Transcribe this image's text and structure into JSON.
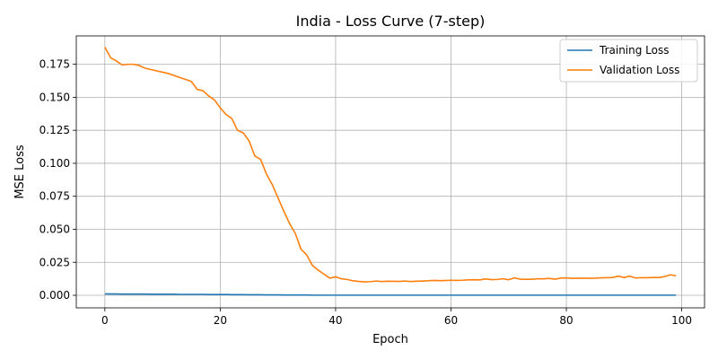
{
  "chart_data": {
    "type": "line",
    "title": "India - Loss Curve (7-step)",
    "xlabel": "Epoch",
    "ylabel": "MSE Loss",
    "xlim": [
      -4.95,
      103.95
    ],
    "ylim": [
      -0.0095,
      0.1965
    ],
    "xticks": [
      0,
      20,
      40,
      60,
      80,
      100
    ],
    "yticks": [
      0.0,
      0.025,
      0.05,
      0.075,
      0.1,
      0.125,
      0.15,
      0.175
    ],
    "xtick_labels": [
      "0",
      "20",
      "40",
      "60",
      "80",
      "100"
    ],
    "ytick_labels": [
      "0.000",
      "0.025",
      "0.050",
      "0.075",
      "0.100",
      "0.125",
      "0.150",
      "0.175"
    ],
    "grid": true,
    "legend_position": "top-right",
    "x": [
      0,
      1,
      2,
      3,
      4,
      5,
      6,
      7,
      8,
      9,
      10,
      11,
      12,
      13,
      14,
      15,
      16,
      17,
      18,
      19,
      20,
      21,
      22,
      23,
      24,
      25,
      26,
      27,
      28,
      29,
      30,
      31,
      32,
      33,
      34,
      35,
      36,
      37,
      38,
      39,
      40,
      41,
      42,
      43,
      44,
      45,
      46,
      47,
      48,
      49,
      50,
      51,
      52,
      53,
      54,
      55,
      56,
      57,
      58,
      59,
      60,
      61,
      62,
      63,
      64,
      65,
      66,
      67,
      68,
      69,
      70,
      71,
      72,
      73,
      74,
      75,
      76,
      77,
      78,
      79,
      80,
      81,
      82,
      83,
      84,
      85,
      86,
      87,
      88,
      89,
      90,
      91,
      92,
      93,
      94,
      95,
      96,
      97,
      98,
      99
    ],
    "series": [
      {
        "name": "Training Loss",
        "color": "#1f77b4",
        "values": [
          0.0011,
          0.001,
          0.001,
          0.0009,
          0.0009,
          0.0009,
          0.0009,
          0.0009,
          0.0008,
          0.0008,
          0.0008,
          0.0008,
          0.0008,
          0.0007,
          0.0007,
          0.0007,
          0.0007,
          0.0007,
          0.0006,
          0.0006,
          0.0006,
          0.0006,
          0.0005,
          0.0005,
          0.0005,
          0.0004,
          0.0004,
          0.0004,
          0.0003,
          0.0003,
          0.0003,
          0.0002,
          0.0002,
          0.0002,
          0.0002,
          0.0002,
          0.0001,
          0.0001,
          0.0001,
          0.0001,
          0.0001,
          0.0001,
          0.0001,
          0.0001,
          0.0001,
          0.0001,
          0.0001,
          0.0001,
          0.0001,
          0.0001,
          0.0001,
          0.0001,
          0.0001,
          0.0001,
          0.0001,
          0.0001,
          0.0001,
          0.0001,
          0.0001,
          0.0001,
          0.0001,
          0.0001,
          0.0001,
          0.0001,
          0.0001,
          0.0001,
          0.0001,
          0.0001,
          0.0001,
          0.0001,
          0.0001,
          0.0001,
          0.0001,
          0.0001,
          0.0001,
          0.0001,
          0.0001,
          0.0001,
          0.0001,
          0.0001,
          0.0001,
          0.0001,
          0.0001,
          0.0001,
          0.0001,
          0.0001,
          0.0001,
          0.0001,
          0.0001,
          0.0001,
          0.0001,
          0.0001,
          0.0001,
          0.0001,
          0.0001,
          0.0001,
          0.0001,
          0.0001,
          0.0001,
          0.0001
        ]
      },
      {
        "name": "Validation Loss",
        "color": "#ff7f0e",
        "values": [
          0.188,
          0.18,
          0.1775,
          0.1745,
          0.175,
          0.175,
          0.174,
          0.172,
          0.171,
          0.17,
          0.169,
          0.168,
          0.1665,
          0.165,
          0.1635,
          0.162,
          0.156,
          0.155,
          0.151,
          0.148,
          0.142,
          0.137,
          0.134,
          0.125,
          0.123,
          0.117,
          0.1055,
          0.103,
          0.092,
          0.084,
          0.074,
          0.064,
          0.0545,
          0.047,
          0.035,
          0.0305,
          0.0225,
          0.019,
          0.016,
          0.013,
          0.014,
          0.0125,
          0.012,
          0.011,
          0.0105,
          0.0102,
          0.0103,
          0.0108,
          0.0104,
          0.0107,
          0.0106,
          0.0105,
          0.0108,
          0.0104,
          0.0107,
          0.0108,
          0.011,
          0.0113,
          0.0111,
          0.0112,
          0.0114,
          0.0113,
          0.0114,
          0.0117,
          0.0118,
          0.0117,
          0.0124,
          0.0119,
          0.012,
          0.0125,
          0.0118,
          0.0132,
          0.0122,
          0.0121,
          0.0121,
          0.0125,
          0.0125,
          0.0128,
          0.0122,
          0.013,
          0.0132,
          0.0128,
          0.013,
          0.013,
          0.0129,
          0.013,
          0.0132,
          0.0133,
          0.0135,
          0.0145,
          0.0135,
          0.0145,
          0.0131,
          0.0133,
          0.0133,
          0.0135,
          0.0135,
          0.0141,
          0.0155,
          0.0148
        ]
      }
    ]
  }
}
